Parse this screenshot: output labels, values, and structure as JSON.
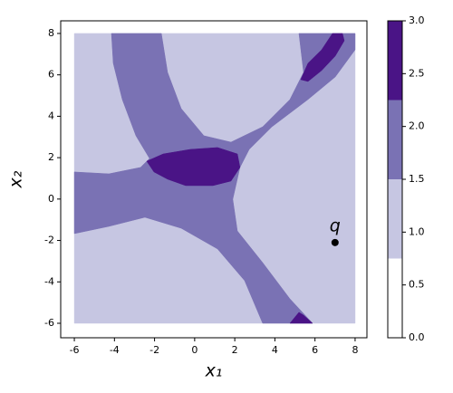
{
  "chart_data": {
    "type": "contourf",
    "xlabel": "x₁",
    "ylabel": "x₂",
    "xlim": [
      -6.68,
      8.59
    ],
    "ylim": [
      -6.7,
      8.61
    ],
    "xticks": [
      -6,
      -4,
      -2,
      0,
      2,
      4,
      6,
      8
    ],
    "yticks": [
      -6,
      -4,
      -2,
      0,
      2,
      4,
      6,
      8
    ],
    "levels": [
      0,
      0.75,
      1.5,
      2.25,
      3
    ],
    "colors": [
      "#ffffff",
      "#c6c6e2",
      "#7a72b4",
      "#4a1486"
    ],
    "colorbar_ticks": [
      {
        "value": 0,
        "label": "0.0"
      },
      {
        "value": 0.5,
        "label": "0.5"
      },
      {
        "value": 1,
        "label": "1.0"
      },
      {
        "value": 1.5,
        "label": "1.5"
      },
      {
        "value": 2,
        "label": "2.0"
      },
      {
        "value": 2.5,
        "label": "2.5"
      },
      {
        "value": 3,
        "label": "3.0"
      }
    ],
    "regions": [
      {
        "range": [
          0.75,
          1.5
        ],
        "points": [
          [
            -6,
            -6
          ],
          [
            8,
            -6
          ],
          [
            8,
            8
          ],
          [
            -6,
            8
          ]
        ]
      },
      {
        "range": [
          1.5,
          2.25
        ],
        "points": [
          [
            -4.15,
            8
          ],
          [
            -1.66,
            8
          ],
          [
            -1.35,
            6.12
          ],
          [
            -0.67,
            4.37
          ],
          [
            0.46,
            3.06
          ],
          [
            1.81,
            2.75
          ],
          [
            3.39,
            3.49
          ],
          [
            4.75,
            4.81
          ],
          [
            5.43,
            6.12
          ],
          [
            5.2,
            8
          ],
          [
            8,
            8
          ],
          [
            8,
            7.21
          ],
          [
            7.01,
            5.9
          ],
          [
            5.65,
            4.81
          ],
          [
            3.85,
            3.49
          ],
          [
            2.72,
            2.4
          ],
          [
            2.26,
            1.53
          ],
          [
            1.9,
            -0.01
          ],
          [
            2.13,
            -1.54
          ],
          [
            3.39,
            -3.07
          ],
          [
            4.75,
            -4.82
          ],
          [
            5.88,
            -6
          ],
          [
            3.39,
            -6
          ],
          [
            2.49,
            -3.94
          ],
          [
            1.14,
            -2.41
          ],
          [
            -0.67,
            -1.41
          ],
          [
            -2.48,
            -0.88
          ],
          [
            -4.28,
            -1.32
          ],
          [
            -6,
            -1.67
          ],
          [
            -6,
            1.31
          ],
          [
            -4.28,
            1.22
          ],
          [
            -2.7,
            1.53
          ],
          [
            -2.25,
            1.96
          ],
          [
            -2.93,
            3.06
          ],
          [
            -3.61,
            4.81
          ],
          [
            -4.06,
            6.56
          ]
        ]
      },
      {
        "range": [
          2.25,
          3
        ],
        "points": [
          [
            -2.39,
            1.83
          ],
          [
            -1.57,
            2.18
          ],
          [
            -0.22,
            2.4
          ],
          [
            1.14,
            2.49
          ],
          [
            2.13,
            2.18
          ],
          [
            2.26,
            1.53
          ],
          [
            1.81,
            0.87
          ],
          [
            0.91,
            0.65
          ],
          [
            -0.45,
            0.65
          ],
          [
            -1.35,
            0.96
          ],
          [
            -2.03,
            1.31
          ]
        ]
      },
      {
        "range": [
          2.25,
          3
        ],
        "points": [
          [
            5.29,
            5.77
          ],
          [
            5.65,
            6.56
          ],
          [
            6.33,
            7.21
          ],
          [
            6.87,
            8
          ],
          [
            7.37,
            8
          ],
          [
            7.46,
            7.65
          ],
          [
            7.01,
            6.91
          ],
          [
            6.33,
            6.21
          ],
          [
            5.65,
            5.68
          ]
        ]
      },
      {
        "range": [
          2.25,
          3
        ],
        "points": [
          [
            4.75,
            -6
          ],
          [
            5.2,
            -5.47
          ],
          [
            5.43,
            -5.61
          ],
          [
            5.88,
            -6
          ]
        ]
      }
    ],
    "points": [
      {
        "x": 7,
        "y": -2.1,
        "label": "q",
        "color": "#000000"
      }
    ]
  }
}
